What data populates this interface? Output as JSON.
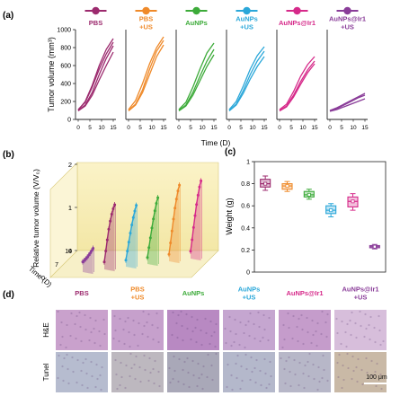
{
  "panel_labels": {
    "a": "(a)",
    "b": "(b)",
    "c": "(c)",
    "d": "(d)"
  },
  "groups": [
    {
      "label_lines": [
        "PBS"
      ],
      "color": "#9c2a6e"
    },
    {
      "label_lines": [
        "PBS",
        "+US"
      ],
      "color": "#ef8a2a"
    },
    {
      "label_lines": [
        "AuNPs"
      ],
      "color": "#3dab3a"
    },
    {
      "label_lines": [
        "AuNPs",
        "+US"
      ],
      "color": "#2aa7d9"
    },
    {
      "label_lines": [
        "AuNPs@Ir1"
      ],
      "color": "#d62a8a"
    },
    {
      "label_lines": [
        "AuNPs@Ir1",
        "+US"
      ],
      "color": "#8a3d99"
    }
  ],
  "chart_data": [
    {
      "type": "line",
      "panel": "a",
      "ylabel": "Tumor volume (mm³)",
      "xlabel": "Time (D)",
      "ylim": [
        0,
        1000
      ],
      "yticks": [
        0,
        200,
        400,
        600,
        800,
        1000
      ],
      "xticks": [
        0,
        5,
        10,
        15
      ],
      "xlim": [
        0,
        15
      ],
      "series": [
        {
          "group": 0,
          "curves": [
            [
              100,
              160,
              300,
              500,
              680,
              820
            ],
            [
              110,
              190,
              360,
              560,
              730,
              860
            ],
            [
              95,
              150,
              270,
              440,
              600,
              750
            ],
            [
              105,
              200,
              380,
              600,
              780,
              900
            ]
          ]
        },
        {
          "group": 1,
          "curves": [
            [
              100,
              170,
              330,
              560,
              760,
              880
            ],
            [
              110,
              210,
              400,
              620,
              800,
              920
            ],
            [
              95,
              160,
              300,
              500,
              700,
              830
            ]
          ]
        },
        {
          "group": 2,
          "curves": [
            [
              100,
              160,
              300,
              480,
              650,
              780
            ],
            [
              110,
              190,
              360,
              560,
              740,
              850
            ],
            [
              95,
              150,
              270,
              430,
              590,
              720
            ]
          ]
        },
        {
          "group": 3,
          "curves": [
            [
              100,
              170,
              320,
              500,
              650,
              760
            ],
            [
              110,
              200,
              370,
              560,
              710,
              810
            ],
            [
              95,
              160,
              290,
              450,
              590,
              700
            ]
          ]
        },
        {
          "group": 4,
          "curves": [
            [
              100,
              150,
              270,
              420,
              550,
              650
            ],
            [
              110,
              170,
              310,
              480,
              610,
              700
            ],
            [
              95,
              140,
              250,
              390,
              520,
              620
            ]
          ]
        },
        {
          "group": 5,
          "curves": [
            [
              90,
              110,
              140,
              170,
              200,
              230
            ],
            [
              100,
              130,
              170,
              210,
              250,
              290
            ],
            [
              95,
              120,
              160,
              200,
              240,
              270
            ]
          ]
        }
      ]
    },
    {
      "type": "line",
      "panel": "b",
      "ylabel": "Relative tumor volume (V/V₀)",
      "zlabel": "Time (D)",
      "yticks": [
        0,
        1,
        2
      ],
      "ylim": [
        0,
        2
      ],
      "tticks": [
        0,
        7,
        14
      ],
      "x": [
        0,
        2,
        4,
        6,
        8,
        10,
        12,
        14
      ],
      "series": [
        {
          "group": 5,
          "values": [
            0.25,
            0.28,
            0.32,
            0.36,
            0.41,
            0.46,
            0.52,
            0.58
          ]
        },
        {
          "group": 0,
          "values": [
            0.18,
            0.45,
            0.72,
            0.98,
            1.18,
            1.35,
            1.48,
            1.58
          ]
        },
        {
          "group": 3,
          "values": [
            0.16,
            0.38,
            0.6,
            0.82,
            1.02,
            1.2,
            1.36,
            1.5
          ]
        },
        {
          "group": 2,
          "values": [
            0.16,
            0.4,
            0.64,
            0.88,
            1.1,
            1.3,
            1.48,
            1.62
          ]
        },
        {
          "group": 1,
          "values": [
            0.17,
            0.45,
            0.74,
            1.03,
            1.3,
            1.52,
            1.72,
            1.86
          ]
        },
        {
          "group": 4,
          "values": [
            0.18,
            0.46,
            0.76,
            1.05,
            1.32,
            1.55,
            1.75,
            1.9
          ]
        }
      ]
    },
    {
      "type": "box",
      "panel": "c",
      "ylabel": "Weight (g)",
      "ylim": [
        0,
        1
      ],
      "yticks": [
        0.0,
        0.2,
        0.4,
        0.6,
        0.8,
        1.0
      ],
      "boxes": [
        {
          "group": 0,
          "min": 0.74,
          "q1": 0.77,
          "median": 0.8,
          "q3": 0.84,
          "max": 0.87,
          "mean": 0.8
        },
        {
          "group": 1,
          "min": 0.73,
          "q1": 0.75,
          "median": 0.78,
          "q3": 0.8,
          "max": 0.82,
          "mean": 0.78
        },
        {
          "group": 2,
          "min": 0.66,
          "q1": 0.68,
          "median": 0.7,
          "q3": 0.73,
          "max": 0.75,
          "mean": 0.7
        },
        {
          "group": 3,
          "min": 0.5,
          "q1": 0.53,
          "median": 0.56,
          "q3": 0.6,
          "max": 0.62,
          "mean": 0.56
        },
        {
          "group": 4,
          "min": 0.56,
          "q1": 0.59,
          "median": 0.64,
          "q3": 0.68,
          "max": 0.71,
          "mean": 0.64
        },
        {
          "group": 5,
          "min": 0.21,
          "q1": 0.22,
          "median": 0.23,
          "q3": 0.24,
          "max": 0.25,
          "mean": 0.23
        }
      ]
    }
  ],
  "histology": {
    "rows": [
      {
        "label": "H&E",
        "tints": [
          "#c9a1cc",
          "#c6a0cc",
          "#b889c2",
          "#c5a6d0",
          "#c59ccb",
          "#d7bedb"
        ]
      },
      {
        "label": "Tunel",
        "tints": [
          "#b6bccf",
          "#bdb8bf",
          "#a9a8b8",
          "#b4b8cb",
          "#b7b7c8",
          "#c9b9a6"
        ]
      }
    ],
    "scale_bar": "100 μm"
  }
}
